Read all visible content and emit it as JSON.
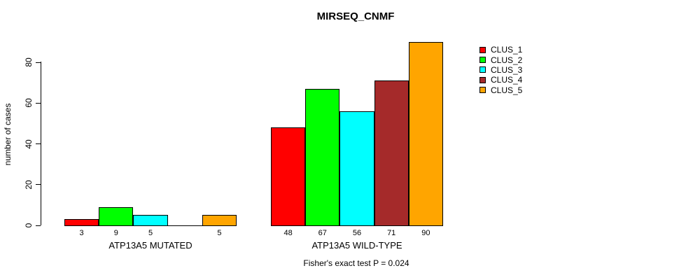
{
  "chart_data": {
    "type": "bar",
    "title": "MIRSEQ_CNMF",
    "xlabel": "",
    "ylabel": "number of cases",
    "ylim": [
      0,
      80
    ],
    "yticks": [
      0,
      20,
      40,
      60,
      80
    ],
    "grid": false,
    "legend_position": "right",
    "series": [
      {
        "name": "CLUS_1",
        "color": "#FF0000"
      },
      {
        "name": "CLUS_2",
        "color": "#00FF00"
      },
      {
        "name": "CLUS_3",
        "color": "#00FFFF"
      },
      {
        "name": "CLUS_4",
        "color": "#A52A2A"
      },
      {
        "name": "CLUS_5",
        "color": "#FFA500"
      }
    ],
    "groups": [
      {
        "label": "ATP13A5 MUTATED",
        "values": [
          3,
          9,
          5,
          0,
          5
        ],
        "value_labels": [
          "3",
          "9",
          "5",
          "",
          "5"
        ]
      },
      {
        "label": "ATP13A5 WILD-TYPE",
        "values": [
          48,
          67,
          56,
          71,
          90
        ],
        "value_labels": [
          "48",
          "67",
          "56",
          "71",
          "90"
        ]
      }
    ],
    "annotation": "Fisher's exact test P = 0.024"
  }
}
